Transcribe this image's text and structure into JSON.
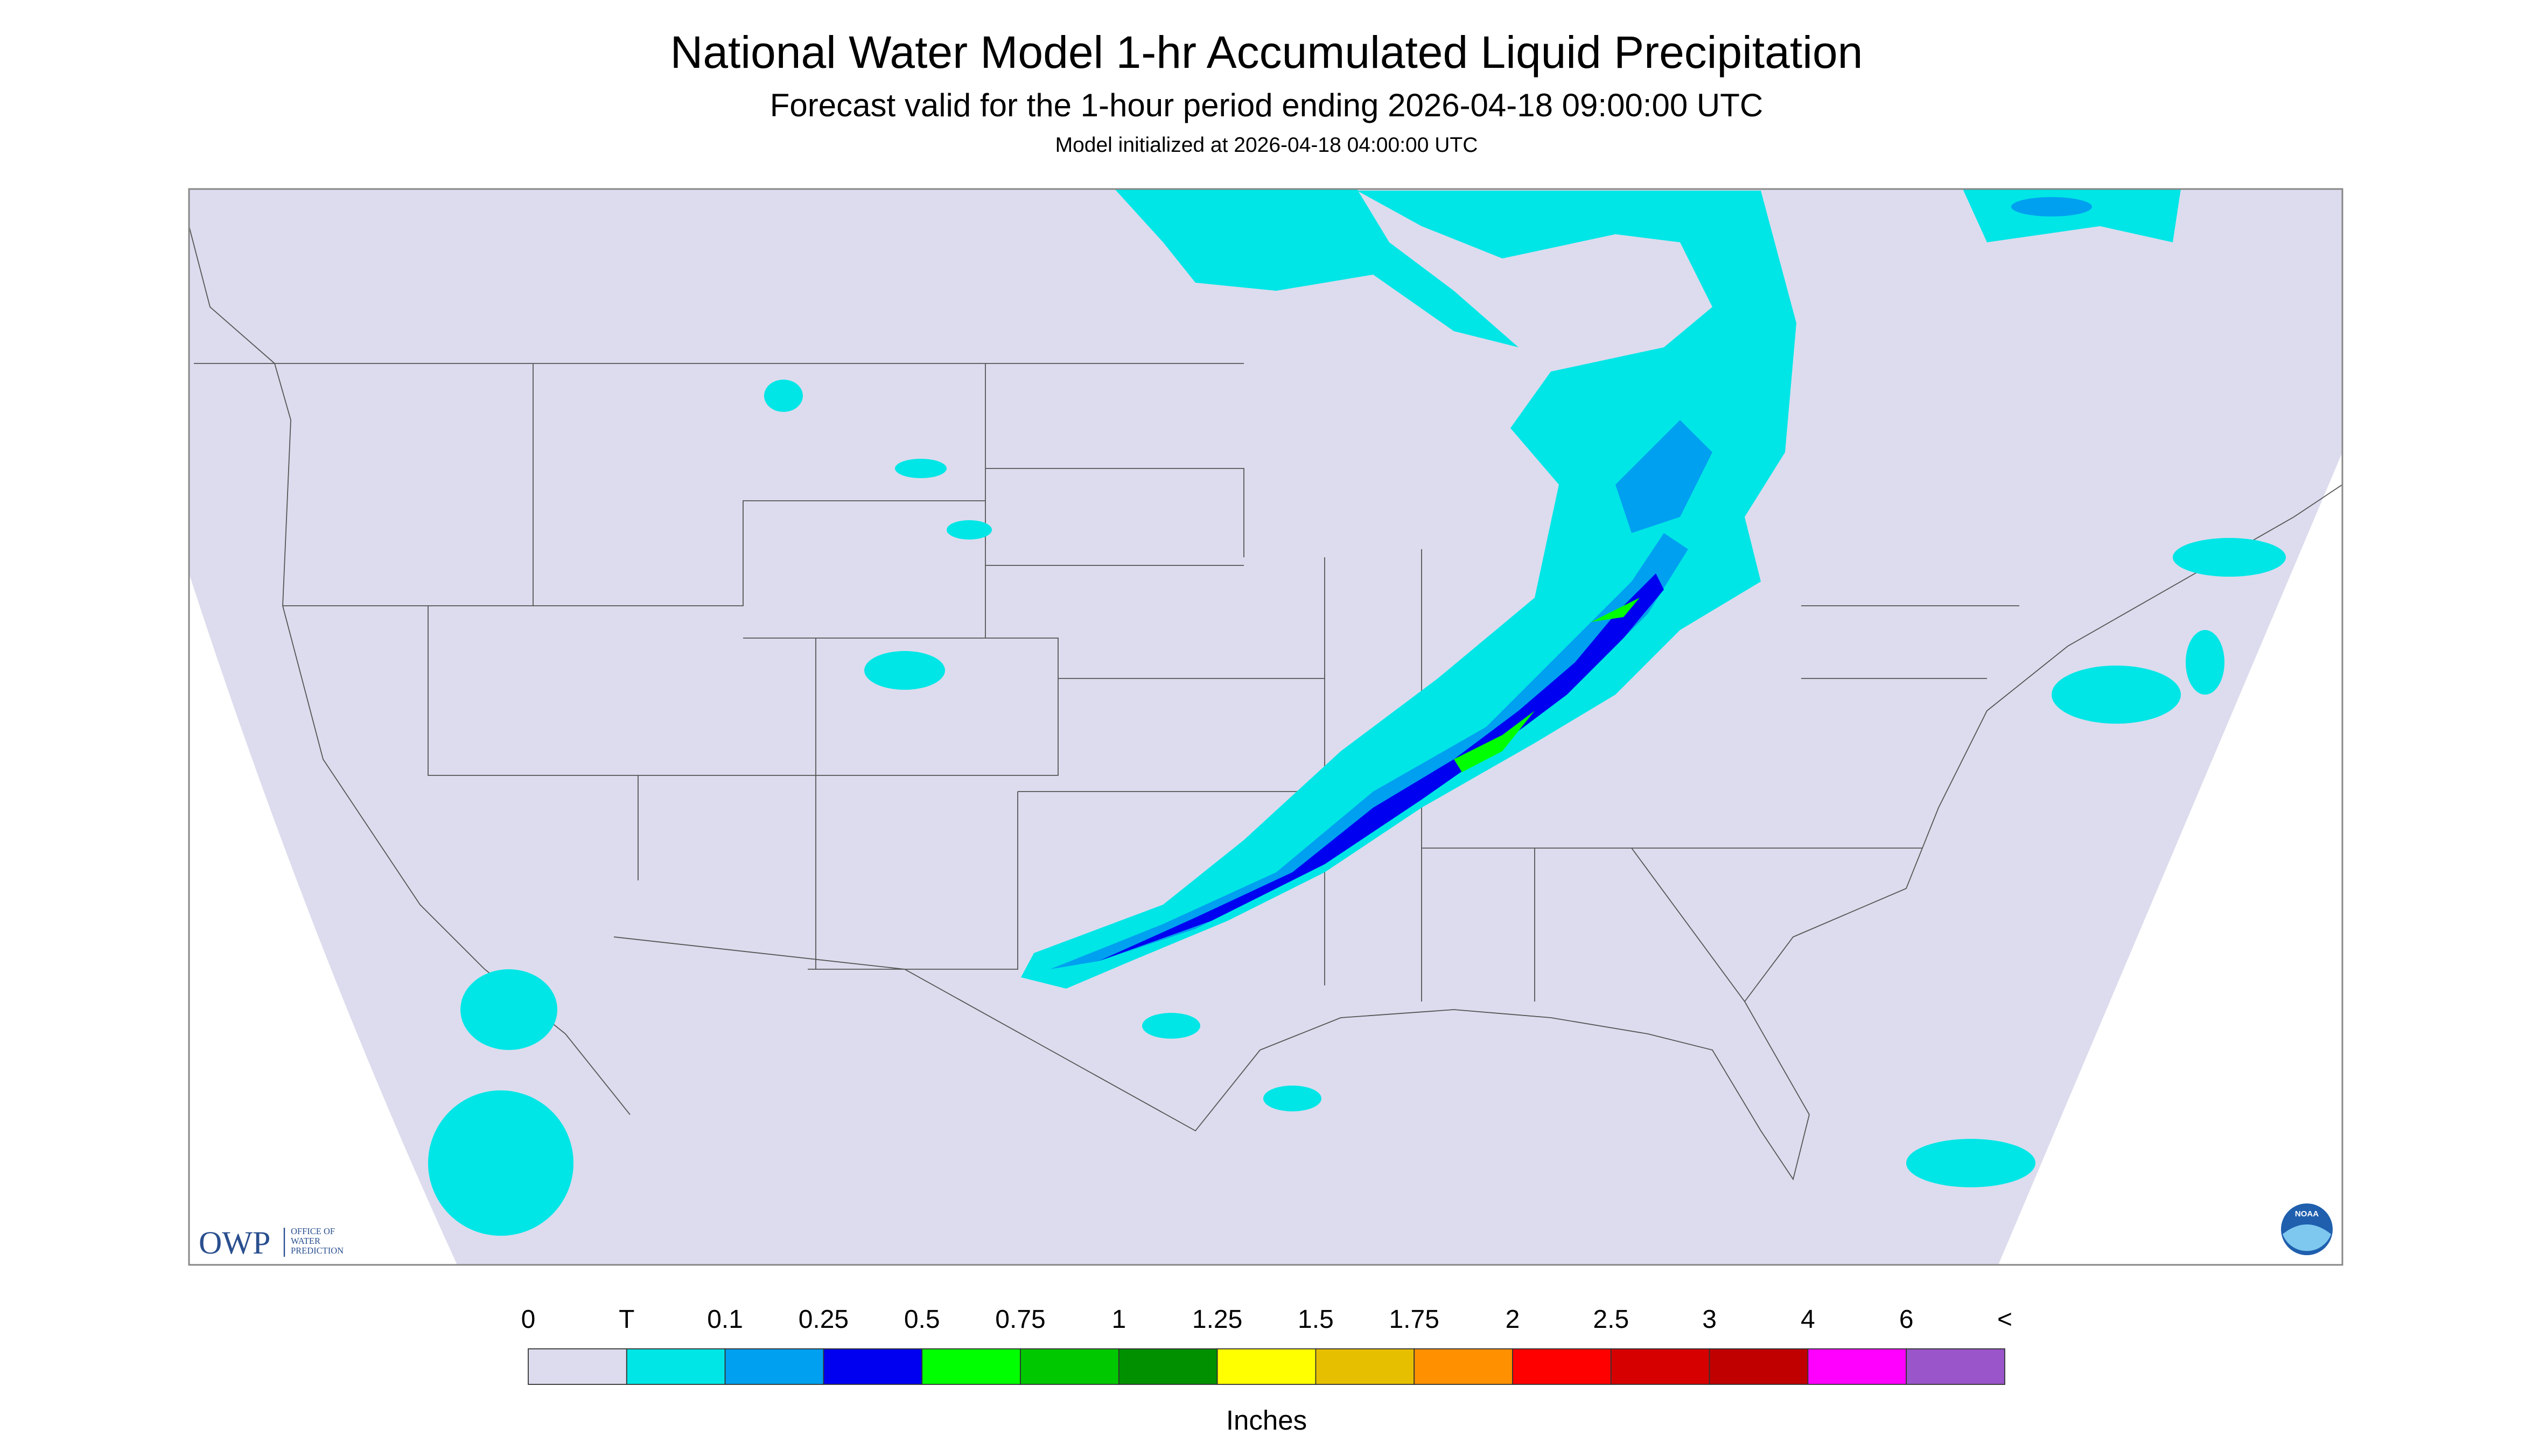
{
  "header": {
    "title": "National Water Model 1-hr Accumulated Liquid Precipitation",
    "subtitle": "Forecast valid for the 1-hour period ending 2026-04-18 09:00:00 UTC",
    "init": "Model initialized at 2026-04-18 04:00:00 UTC"
  },
  "logos": {
    "owp": "OWP",
    "owp_lines": [
      "OFFICE OF",
      "WATER",
      "PREDICTION"
    ],
    "noaa": "NOAA"
  },
  "legend": {
    "labels": [
      "0",
      "T",
      "0.1",
      "0.25",
      "0.5",
      "0.75",
      "1",
      "1.25",
      "1.5",
      "1.75",
      "2",
      "2.5",
      "3",
      "4",
      "6",
      "<"
    ],
    "colors": [
      "#dcdcee",
      "#00e6e6",
      "#00a0f0",
      "#0000f0",
      "#00ff00",
      "#00c800",
      "#009000",
      "#ffff00",
      "#e6c000",
      "#ff9000",
      "#ff0000",
      "#d60000",
      "#c00000",
      "#ff00ff",
      "#9955c9"
    ],
    "unit": "Inches"
  }
}
